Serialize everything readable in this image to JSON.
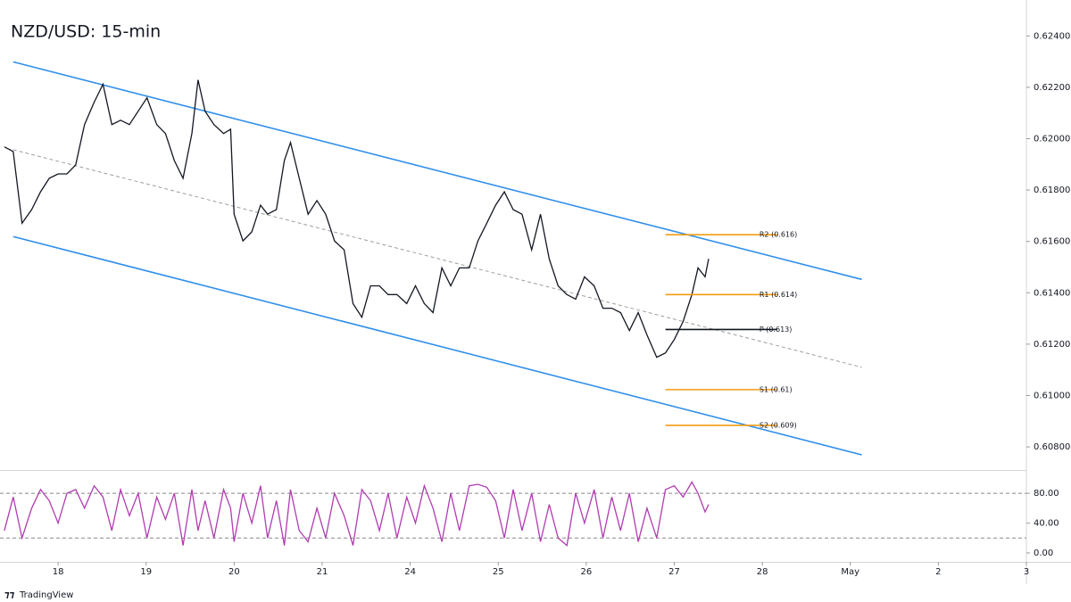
{
  "chart_data": {
    "type": "line",
    "title": "NZD/USD: 15-min",
    "footer": "TradingView",
    "x": [
      -0.61,
      -0.51,
      -0.41,
      -0.3,
      -0.2,
      -0.1,
      0,
      0.1,
      0.2,
      0.3,
      0.41,
      0.51,
      0.61,
      0.71,
      0.81,
      0.91,
      1.01,
      1.12,
      1.22,
      1.32,
      1.42,
      1.52,
      1.59,
      1.67,
      1.77,
      1.88,
      1.96,
      2.0,
      2.1,
      2.2,
      2.3,
      2.38,
      2.48,
      2.57,
      2.64,
      2.74,
      2.84,
      2.94,
      3.04,
      3.14,
      3.25,
      3.35,
      3.45,
      3.55,
      3.65,
      3.75,
      3.85,
      3.96,
      4.06,
      4.16,
      4.26,
      4.36,
      4.46,
      4.56,
      4.67,
      4.77,
      4.87,
      4.97,
      5.07,
      5.17,
      5.27,
      5.38,
      5.48,
      5.58,
      5.68,
      5.78,
      5.88,
      5.98,
      6.09,
      6.19,
      6.29,
      6.39,
      6.49,
      6.59,
      6.69,
      6.8,
      6.9,
      7.0,
      7.1,
      7.2,
      7.27,
      7.35,
      7.39
    ],
    "series": [
      {
        "color": "#131722",
        "values": [
          0.61968,
          0.6195,
          0.61671,
          0.61724,
          0.61793,
          0.61846,
          0.61863,
          0.61863,
          0.61898,
          0.62055,
          0.62142,
          0.62212,
          0.62055,
          0.62072,
          0.62055,
          0.62107,
          0.62159,
          0.62055,
          0.6202,
          0.61915,
          0.61846,
          0.6202,
          0.62229,
          0.62107,
          0.62055,
          0.6202,
          0.62037,
          0.61706,
          0.61602,
          0.61637,
          0.61741,
          0.61706,
          0.61724,
          0.61915,
          0.61985,
          0.61846,
          0.61706,
          0.61759,
          0.61706,
          0.61602,
          0.61567,
          0.61358,
          0.61305,
          0.61427,
          0.61427,
          0.61393,
          0.61393,
          0.61358,
          0.61427,
          0.61358,
          0.61323,
          0.61497,
          0.61427,
          0.61497,
          0.61497,
          0.61602,
          0.61671,
          0.61741,
          0.61793,
          0.61724,
          0.61706,
          0.61567,
          0.61706,
          0.61532,
          0.61427,
          0.61393,
          0.61375,
          0.61462,
          0.61427,
          0.6134,
          0.6134,
          0.61323,
          0.61253,
          0.61323,
          0.61236,
          0.61149,
          0.61166,
          0.61218,
          0.61288,
          0.61393,
          0.61497,
          0.61462,
          0.61532
        ]
      }
    ],
    "xlim": [
      -0.66,
      11.0
    ],
    "xticks": [
      {
        "value": 0,
        "label": "18"
      },
      {
        "value": 1,
        "label": "19"
      },
      {
        "value": 2,
        "label": "20"
      },
      {
        "value": 3,
        "label": "21"
      },
      {
        "value": 4,
        "label": "24"
      },
      {
        "value": 5,
        "label": "25"
      },
      {
        "value": 6,
        "label": "26"
      },
      {
        "value": 7,
        "label": "27"
      },
      {
        "value": 8,
        "label": "28"
      },
      {
        "value": 9,
        "label": "May"
      },
      {
        "value": 10,
        "label": "2"
      },
      {
        "value": 11,
        "label": "3"
      }
    ],
    "ylim": [
      0.6071,
      0.6254
    ],
    "yticks": [
      {
        "value": 0.624,
        "label": "0.62400"
      },
      {
        "value": 0.622,
        "label": "0.62200"
      },
      {
        "value": 0.62,
        "label": "0.62000"
      },
      {
        "value": 0.618,
        "label": "0.61800"
      },
      {
        "value": 0.616,
        "label": "0.61600"
      },
      {
        "value": 0.614,
        "label": "0.61400"
      },
      {
        "value": 0.612,
        "label": "0.61200"
      },
      {
        "value": 0.61,
        "label": "0.61000"
      },
      {
        "value": 0.608,
        "label": "0.60800"
      }
    ],
    "channel": [
      {
        "color": "#2f8fea",
        "dashed": false,
        "x": [
          -0.51,
          9.13
        ],
        "y": [
          0.62299,
          0.61452
        ]
      },
      {
        "color": "#9e9e9e",
        "dashed": true,
        "x": [
          -0.51,
          9.13
        ],
        "y": [
          0.61957,
          0.6111
        ]
      },
      {
        "color": "#2f8fea",
        "dashed": false,
        "x": [
          -0.51,
          9.13
        ],
        "y": [
          0.61619,
          0.60769
        ]
      }
    ],
    "levels": [
      {
        "label": "R2 (0.616)",
        "value": 0.61626,
        "x": [
          6.9,
          8.17
        ],
        "color": "#f39c12"
      },
      {
        "label": "R1 (0.614)",
        "value": 0.61393,
        "x": [
          6.9,
          8.17
        ],
        "color": "#f39c12"
      },
      {
        "label": "P (0.613)",
        "value": 0.61257,
        "x": [
          6.9,
          8.17
        ],
        "color": "#131722"
      },
      {
        "label": "S1 (0.61)",
        "value": 0.61023,
        "x": [
          6.9,
          8.17
        ],
        "color": "#f39c12"
      },
      {
        "label": "S2 (0.609)",
        "value": 0.60884,
        "x": [
          6.9,
          8.17
        ],
        "color": "#f39c12"
      }
    ],
    "indicator": {
      "color": "#b03cb0",
      "values": [
        30,
        75,
        20,
        60,
        85,
        70,
        40,
        80,
        85,
        60,
        90,
        75,
        30,
        85,
        50,
        80,
        20,
        75,
        45,
        80,
        10,
        85,
        30,
        70,
        20,
        85,
        60,
        15,
        80,
        40,
        90,
        20,
        70,
        10,
        85,
        30,
        15,
        60,
        20,
        80,
        50,
        10,
        85,
        70,
        30,
        80,
        20,
        75,
        40,
        90,
        60,
        15,
        80,
        30,
        90,
        92,
        88,
        70,
        20,
        85,
        30,
        80,
        15,
        65,
        20,
        10,
        80,
        40,
        85,
        20,
        75,
        30,
        80,
        15,
        60,
        20,
        85,
        90,
        75,
        95,
        80,
        55,
        65
      ],
      "ylim": [
        -12,
        110
      ],
      "yticks": [
        {
          "value": 80,
          "label": "80.00"
        },
        {
          "value": 40,
          "label": "40.00"
        },
        {
          "value": 0,
          "label": "0.00"
        }
      ],
      "levels": [
        80,
        20
      ]
    }
  }
}
